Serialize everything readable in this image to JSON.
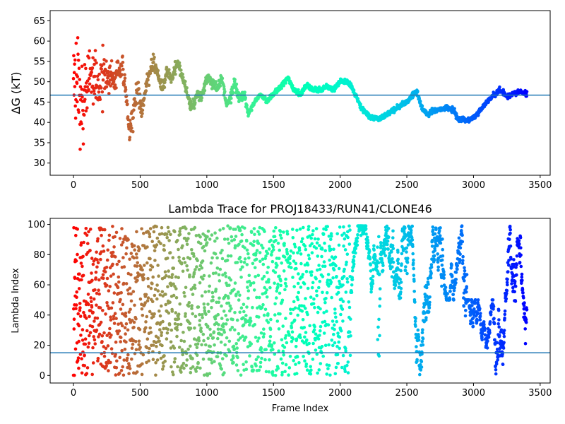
{
  "chart_data": [
    {
      "type": "scatter",
      "title": "",
      "xlabel": "",
      "ylabel": "ΔG (kT)",
      "xlim": [
        -175,
        3575
      ],
      "ylim": [
        27,
        67.5
      ],
      "xticks": [
        0,
        500,
        1000,
        1500,
        2000,
        2500,
        3000,
        3500
      ],
      "xtick_labels": [
        "0",
        "500",
        "1000",
        "1500",
        "2000",
        "2500",
        "3000",
        "3500"
      ],
      "yticks": [
        30,
        35,
        40,
        45,
        50,
        55,
        60,
        65
      ],
      "ytick_labels": [
        "30",
        "35",
        "40",
        "45",
        "50",
        "55",
        "60",
        "65"
      ],
      "hline": 46.7,
      "hline_color": "#1f77b4",
      "colormap": "rainbow-reversed",
      "grid": false,
      "x_range": [
        0,
        3400
      ],
      "trend_anchors": [
        [
          0,
          50
        ],
        [
          60,
          48
        ],
        [
          100,
          50
        ],
        [
          150,
          50
        ],
        [
          200,
          52
        ],
        [
          260,
          52
        ],
        [
          300,
          50
        ],
        [
          330,
          52
        ],
        [
          370,
          54
        ],
        [
          400,
          44
        ],
        [
          420,
          39
        ],
        [
          450,
          42
        ],
        [
          480,
          48
        ],
        [
          510,
          42
        ],
        [
          550,
          50
        ],
        [
          600,
          55
        ],
        [
          630,
          52
        ],
        [
          660,
          49
        ],
        [
          700,
          52
        ],
        [
          740,
          51
        ],
        [
          780,
          55
        ],
        [
          820,
          51
        ],
        [
          860,
          46
        ],
        [
          890,
          44
        ],
        [
          930,
          47
        ],
        [
          960,
          46
        ],
        [
          1000,
          51
        ],
        [
          1040,
          50
        ],
        [
          1080,
          48
        ],
        [
          1110,
          51
        ],
        [
          1150,
          44
        ],
        [
          1180,
          46
        ],
        [
          1210,
          50
        ],
        [
          1240,
          45
        ],
        [
          1280,
          47
        ],
        [
          1310,
          42
        ],
        [
          1360,
          45
        ],
        [
          1400,
          47
        ],
        [
          1450,
          45
        ],
        [
          1500,
          47
        ],
        [
          1560,
          49
        ],
        [
          1610,
          51
        ],
        [
          1650,
          48
        ],
        [
          1700,
          47
        ],
        [
          1750,
          49
        ],
        [
          1800,
          48
        ],
        [
          1850,
          48
        ],
        [
          1900,
          49
        ],
        [
          1950,
          48
        ],
        [
          2000,
          50
        ],
        [
          2050,
          50
        ],
        [
          2100,
          48
        ],
        [
          2150,
          44
        ],
        [
          2200,
          42
        ],
        [
          2250,
          41
        ],
        [
          2300,
          41
        ],
        [
          2350,
          42
        ],
        [
          2400,
          43
        ],
        [
          2450,
          44
        ],
        [
          2500,
          45
        ],
        [
          2550,
          47
        ],
        [
          2580,
          47
        ],
        [
          2620,
          43
        ],
        [
          2660,
          42
        ],
        [
          2700,
          43
        ],
        [
          2800,
          43.5
        ],
        [
          2850,
          43
        ],
        [
          2880,
          41
        ],
        [
          2950,
          40.5
        ],
        [
          3000,
          41
        ],
        [
          3050,
          43
        ],
        [
          3100,
          45
        ],
        [
          3150,
          46.5
        ],
        [
          3200,
          48
        ],
        [
          3250,
          46.5
        ],
        [
          3300,
          47
        ],
        [
          3350,
          47.5
        ],
        [
          3400,
          47
        ]
      ]
    },
    {
      "type": "scatter",
      "title": "Lambda Trace for PROJ18433/RUN41/CLONE46",
      "xlabel": "Frame Index",
      "ylabel": "Lambda Index",
      "xlim": [
        -175,
        3575
      ],
      "ylim": [
        -5,
        104
      ],
      "xticks": [
        0,
        500,
        1000,
        1500,
        2000,
        2500,
        3000,
        3500
      ],
      "xtick_labels": [
        "0",
        "500",
        "1000",
        "1500",
        "2000",
        "2500",
        "3000",
        "3500"
      ],
      "yticks": [
        0,
        20,
        40,
        60,
        80,
        100
      ],
      "ytick_labels": [
        "0",
        "20",
        "40",
        "60",
        "80",
        "100"
      ],
      "hline": 15,
      "hline_color": "#1f77b4",
      "colormap": "rainbow-reversed",
      "grid": false,
      "x_range": [
        0,
        3400
      ],
      "value_range": [
        0,
        99
      ]
    }
  ]
}
